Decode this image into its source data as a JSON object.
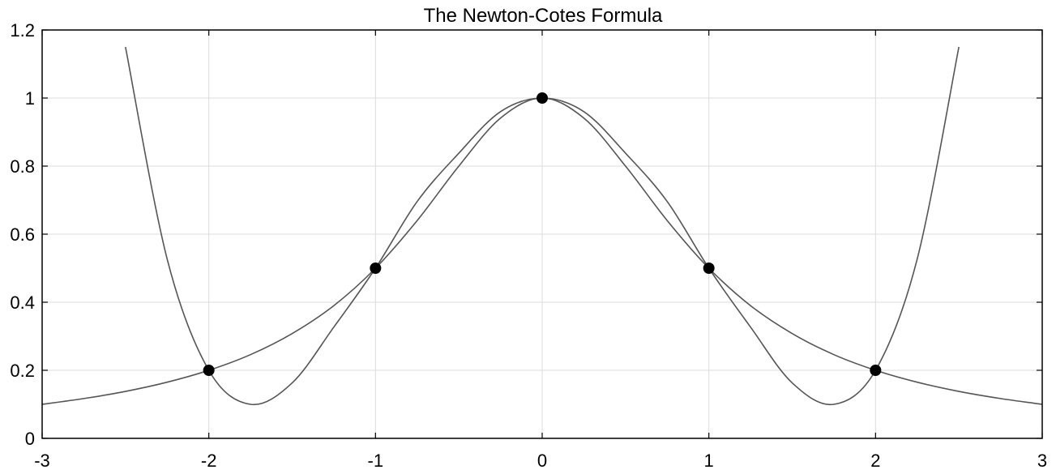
{
  "chart_data": {
    "type": "line",
    "title": "The Newton-Cotes Formula",
    "xlabel": "",
    "ylabel": "",
    "xlim": [
      -3,
      3
    ],
    "ylim": [
      0,
      1.2
    ],
    "xticks": [
      -3,
      -2,
      -1,
      0,
      1,
      2,
      3
    ],
    "xtick_labels": [
      "-3",
      "-2",
      "-1",
      "0",
      "1",
      "2",
      "3"
    ],
    "yticks": [
      0,
      0.2,
      0.4,
      0.6,
      0.8,
      1,
      1.2
    ],
    "ytick_labels": [
      "0",
      "0.2",
      "0.4",
      "0.6",
      "0.8",
      "1",
      "1.2"
    ],
    "grid": true,
    "series": [
      {
        "style": "line",
        "color": "#555555",
        "x": [
          -3,
          -2.75,
          -2.5,
          -2.25,
          -2,
          -1.75,
          -1.5,
          -1.25,
          -1,
          -0.75,
          -0.5,
          -0.25,
          0,
          0.25,
          0.5,
          0.75,
          1,
          1.25,
          1.5,
          1.75,
          2,
          2.25,
          2.5,
          2.75,
          3
        ],
        "y": [
          0.1,
          0.117,
          0.138,
          0.165,
          0.2,
          0.246,
          0.308,
          0.39,
          0.5,
          0.64,
          0.8,
          0.941,
          1,
          0.941,
          0.8,
          0.64,
          0.5,
          0.39,
          0.308,
          0.246,
          0.2,
          0.165,
          0.138,
          0.117,
          0.1
        ]
      },
      {
        "style": "line",
        "color": "#555555",
        "x": [
          -2.5,
          -2.25,
          -2,
          -1.75,
          -1.5,
          -1.25,
          -1,
          -0.75,
          -0.5,
          -0.25,
          0,
          0.25,
          0.5,
          0.75,
          1,
          1.25,
          1.5,
          1.75,
          2,
          2.25,
          2.5
        ],
        "y": [
          1.15,
          0.527,
          0.2,
          0.1,
          0.163,
          0.327,
          0.5,
          0.696,
          0.838,
          0.96,
          1,
          0.96,
          0.838,
          0.696,
          0.5,
          0.327,
          0.163,
          0.1,
          0.2,
          0.527,
          1.15
        ]
      },
      {
        "style": "markers",
        "color": "#000000",
        "x": [
          -2,
          -1,
          0,
          1,
          2
        ],
        "y": [
          0.2,
          0.5,
          1,
          0.5,
          0.2
        ]
      }
    ]
  }
}
